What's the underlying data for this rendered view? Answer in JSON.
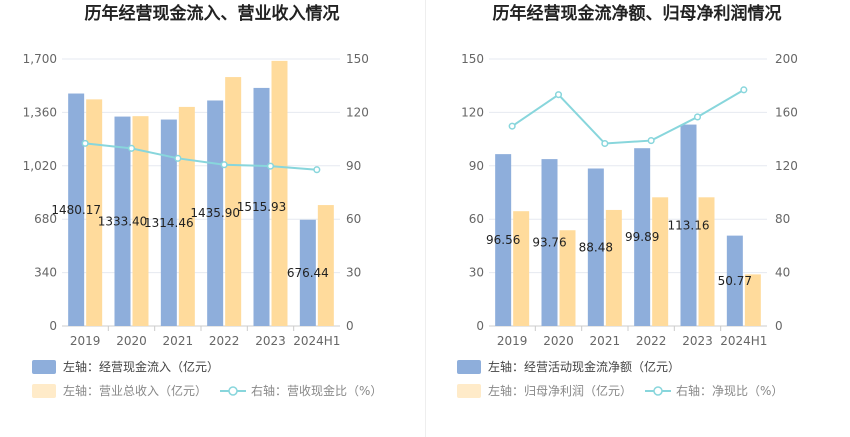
{
  "chart_data": [
    {
      "type": "bar",
      "title": "历年经营现金流入、营业收入情况",
      "categories": [
        "2019",
        "2020",
        "2021",
        "2022",
        "2023",
        "2024H1"
      ],
      "left_axis": {
        "ticks": [
          "0",
          "340",
          "680",
          "1,020",
          "1,360",
          "1,700"
        ],
        "ylim": [
          0,
          1700
        ]
      },
      "right_axis": {
        "ticks": [
          "0",
          "30",
          "60",
          "90",
          "120",
          "150"
        ],
        "ylim": [
          0,
          150
        ]
      },
      "series": [
        {
          "name": "左轴：经营现金流入（亿元）",
          "type": "bar",
          "axis": "left",
          "color": "#8eaedb",
          "values": [
            1480.17,
            1333.4,
            1314.46,
            1435.9,
            1515.93,
            676.44
          ],
          "labels": [
            "1480.17",
            "1333.40",
            "1314.46",
            "1435.90",
            "1515.93",
            "676.44"
          ]
        },
        {
          "name": "左轴：营业总收入（亿元）",
          "type": "bar",
          "axis": "left",
          "color": "#ffdb9c",
          "values": [
            1443,
            1336,
            1395,
            1585,
            1688,
            770
          ]
        },
        {
          "name": "右轴：营收现金比（%）",
          "type": "line",
          "axis": "right",
          "color": "#88d6dc",
          "values": [
            102.6,
            99.8,
            94.2,
            90.6,
            89.8,
            87.8
          ]
        }
      ]
    },
    {
      "type": "bar",
      "title": "历年经营现金流净额、归母净利润情况",
      "categories": [
        "2019",
        "2020",
        "2021",
        "2022",
        "2023",
        "2024H1"
      ],
      "left_axis": {
        "ticks": [
          "0",
          "30",
          "60",
          "90",
          "120",
          "150"
        ],
        "ylim": [
          0,
          150
        ]
      },
      "right_axis": {
        "ticks": [
          "0",
          "40",
          "80",
          "120",
          "160",
          "200"
        ],
        "ylim": [
          0,
          200
        ]
      },
      "series": [
        {
          "name": "左轴：经营活动现金流净额（亿元）",
          "type": "bar",
          "axis": "left",
          "color": "#8eaedb",
          "values": [
            96.56,
            93.76,
            88.48,
            99.89,
            113.16,
            50.77
          ],
          "labels": [
            "96.56",
            "93.76",
            "88.48",
            "99.89",
            "113.16",
            "50.77"
          ]
        },
        {
          "name": "左轴：归母净利润（亿元）",
          "type": "bar",
          "axis": "left",
          "color": "#ffdb9c",
          "values": [
            64.5,
            53.8,
            65.2,
            72.3,
            72.3,
            29
          ]
        },
        {
          "name": "右轴：净现比（%）",
          "type": "line",
          "axis": "right",
          "color": "#88d6dc",
          "values": [
            149.7,
            173.3,
            136.7,
            138.9,
            156.6,
            176.9
          ]
        }
      ]
    }
  ]
}
